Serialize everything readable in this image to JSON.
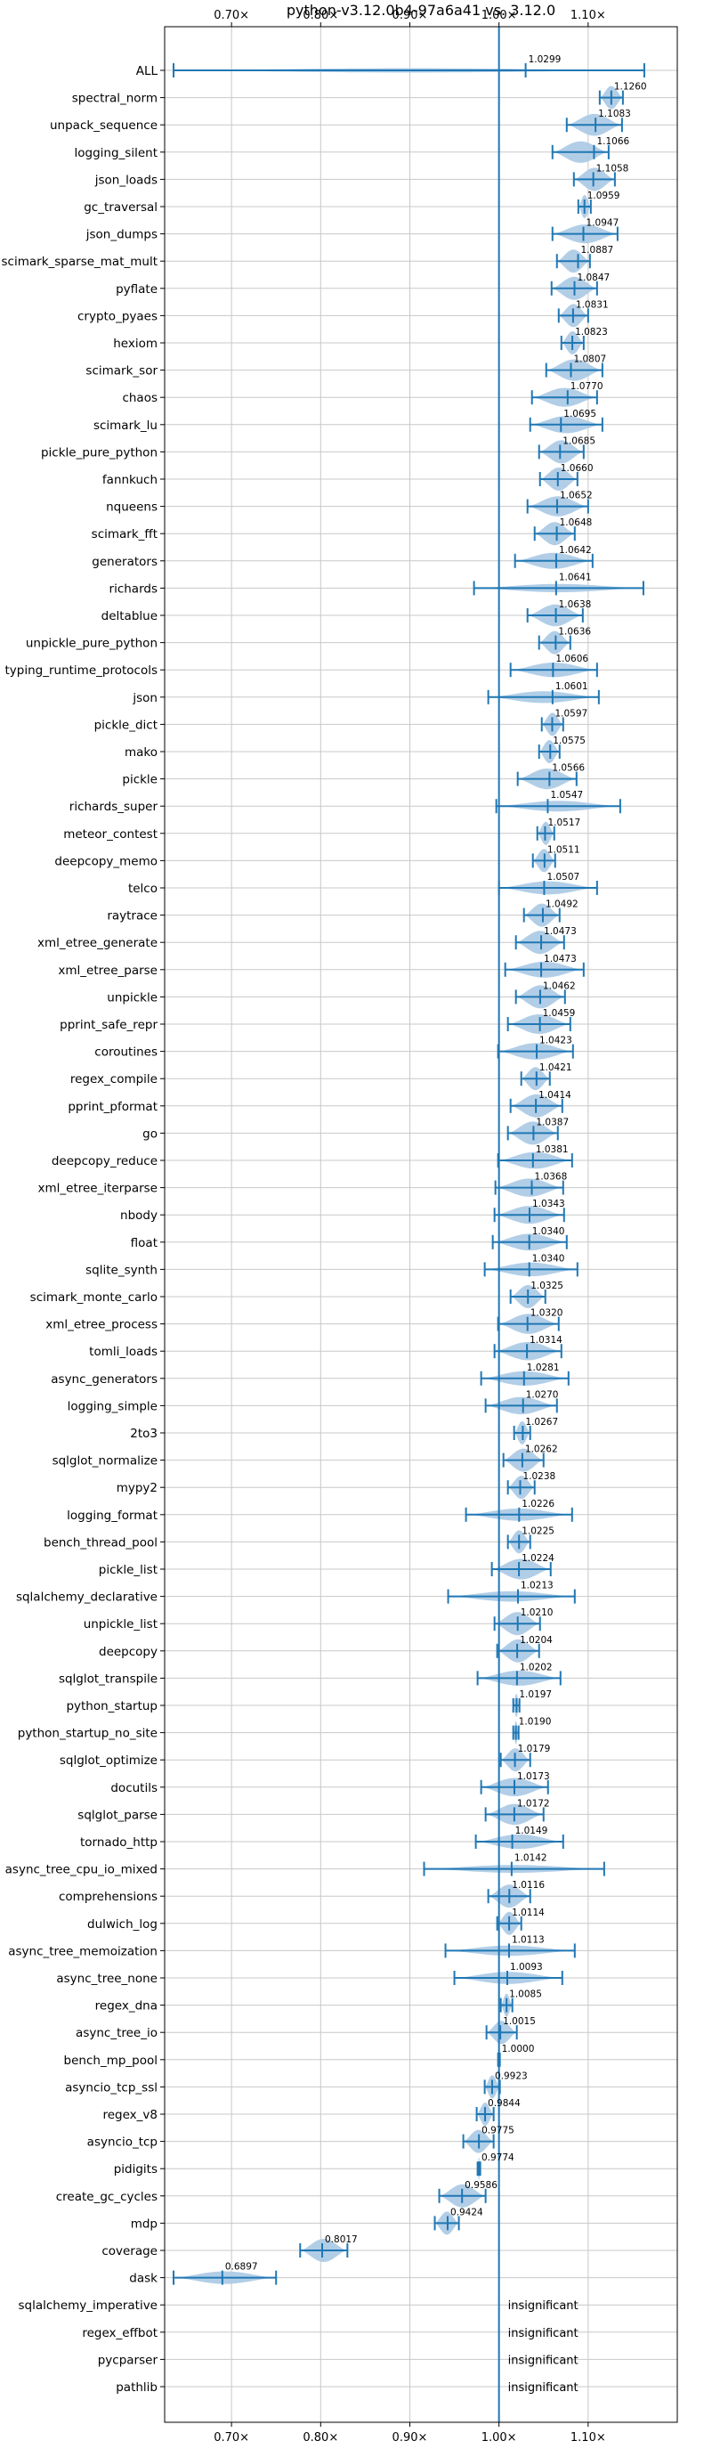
{
  "chart_data": {
    "type": "violin",
    "title": "python-v3.12.0b4-97a6a41 vs. 3.12.0",
    "xlabel": "",
    "ylabel": "",
    "xlim": [
      0.625,
      1.2
    ],
    "xticks": [
      {
        "value": 0.7,
        "label": "0.70×"
      },
      {
        "value": 0.8,
        "label": "0.80×"
      },
      {
        "value": 0.9,
        "label": "0.90×"
      },
      {
        "value": 1.0,
        "label": "1.00×"
      },
      {
        "value": 1.1,
        "label": "1.10×"
      }
    ],
    "reference_line": 1.0,
    "grid": true,
    "colors": {
      "violin": "#aecbe6",
      "line": "#1f77b4",
      "grid": "#c8c8c8"
    },
    "insignificant_label": "insignificant",
    "benchmarks": [
      {
        "name": "ALL",
        "value": 1.0299,
        "min": 0.635,
        "max": 1.163
      },
      {
        "name": "spectral_norm",
        "value": 1.126,
        "min": 1.113,
        "max": 1.139
      },
      {
        "name": "unpack_sequence",
        "value": 1.1083,
        "min": 1.076,
        "max": 1.138
      },
      {
        "name": "logging_silent",
        "value": 1.1066,
        "min": 1.06,
        "max": 1.123
      },
      {
        "name": "json_loads",
        "value": 1.1058,
        "min": 1.084,
        "max": 1.13
      },
      {
        "name": "gc_traversal",
        "value": 1.0959,
        "min": 1.089,
        "max": 1.103
      },
      {
        "name": "json_dumps",
        "value": 1.0947,
        "min": 1.06,
        "max": 1.133
      },
      {
        "name": "scimark_sparse_mat_mult",
        "value": 1.0887,
        "min": 1.065,
        "max": 1.102
      },
      {
        "name": "pyflate",
        "value": 1.0847,
        "min": 1.059,
        "max": 1.11
      },
      {
        "name": "crypto_pyaes",
        "value": 1.0831,
        "min": 1.067,
        "max": 1.1
      },
      {
        "name": "hexiom",
        "value": 1.0823,
        "min": 1.07,
        "max": 1.095
      },
      {
        "name": "scimark_sor",
        "value": 1.0807,
        "min": 1.053,
        "max": 1.116
      },
      {
        "name": "chaos",
        "value": 1.077,
        "min": 1.037,
        "max": 1.11
      },
      {
        "name": "scimark_lu",
        "value": 1.0695,
        "min": 1.035,
        "max": 1.116
      },
      {
        "name": "pickle_pure_python",
        "value": 1.0685,
        "min": 1.045,
        "max": 1.095
      },
      {
        "name": "fannkuch",
        "value": 1.066,
        "min": 1.046,
        "max": 1.088
      },
      {
        "name": "nqueens",
        "value": 1.0652,
        "min": 1.032,
        "max": 1.1
      },
      {
        "name": "scimark_fft",
        "value": 1.0648,
        "min": 1.04,
        "max": 1.085
      },
      {
        "name": "generators",
        "value": 1.0642,
        "min": 1.018,
        "max": 1.105
      },
      {
        "name": "richards",
        "value": 1.0641,
        "min": 0.972,
        "max": 1.162
      },
      {
        "name": "deltablue",
        "value": 1.0638,
        "min": 1.032,
        "max": 1.094
      },
      {
        "name": "unpickle_pure_python",
        "value": 1.0636,
        "min": 1.045,
        "max": 1.08
      },
      {
        "name": "typing_runtime_protocols",
        "value": 1.0606,
        "min": 1.013,
        "max": 1.11
      },
      {
        "name": "json",
        "value": 1.0601,
        "min": 0.988,
        "max": 1.112
      },
      {
        "name": "pickle_dict",
        "value": 1.0597,
        "min": 1.048,
        "max": 1.072
      },
      {
        "name": "mako",
        "value": 1.0575,
        "min": 1.045,
        "max": 1.068
      },
      {
        "name": "pickle",
        "value": 1.0566,
        "min": 1.021,
        "max": 1.087
      },
      {
        "name": "richards_super",
        "value": 1.0547,
        "min": 0.997,
        "max": 1.136
      },
      {
        "name": "meteor_contest",
        "value": 1.0517,
        "min": 1.043,
        "max": 1.062
      },
      {
        "name": "deepcopy_memo",
        "value": 1.0511,
        "min": 1.038,
        "max": 1.063
      },
      {
        "name": "telco",
        "value": 1.0507,
        "min": 1.0,
        "max": 1.11
      },
      {
        "name": "raytrace",
        "value": 1.0492,
        "min": 1.028,
        "max": 1.068
      },
      {
        "name": "xml_etree_generate",
        "value": 1.0473,
        "min": 1.019,
        "max": 1.073
      },
      {
        "name": "xml_etree_parse",
        "value": 1.0473,
        "min": 1.007,
        "max": 1.095
      },
      {
        "name": "unpickle",
        "value": 1.0462,
        "min": 1.019,
        "max": 1.074
      },
      {
        "name": "pprint_safe_repr",
        "value": 1.0459,
        "min": 1.01,
        "max": 1.08
      },
      {
        "name": "coroutines",
        "value": 1.0423,
        "min": 0.999,
        "max": 1.083
      },
      {
        "name": "regex_compile",
        "value": 1.0421,
        "min": 1.025,
        "max": 1.057
      },
      {
        "name": "pprint_pformat",
        "value": 1.0414,
        "min": 1.013,
        "max": 1.071
      },
      {
        "name": "go",
        "value": 1.0387,
        "min": 1.01,
        "max": 1.066
      },
      {
        "name": "deepcopy_reduce",
        "value": 1.0381,
        "min": 0.999,
        "max": 1.082
      },
      {
        "name": "xml_etree_iterparse",
        "value": 1.0368,
        "min": 0.996,
        "max": 1.072
      },
      {
        "name": "nbody",
        "value": 1.0343,
        "min": 0.995,
        "max": 1.073
      },
      {
        "name": "float",
        "value": 1.034,
        "min": 0.993,
        "max": 1.076
      },
      {
        "name": "sqlite_synth",
        "value": 1.034,
        "min": 0.984,
        "max": 1.088
      },
      {
        "name": "scimark_monte_carlo",
        "value": 1.0325,
        "min": 1.013,
        "max": 1.052
      },
      {
        "name": "xml_etree_process",
        "value": 1.032,
        "min": 0.999,
        "max": 1.067
      },
      {
        "name": "tomli_loads",
        "value": 1.0314,
        "min": 0.995,
        "max": 1.07
      },
      {
        "name": "async_generators",
        "value": 1.0281,
        "min": 0.98,
        "max": 1.078
      },
      {
        "name": "logging_simple",
        "value": 1.027,
        "min": 0.985,
        "max": 1.065
      },
      {
        "name": "2to3",
        "value": 1.0267,
        "min": 1.017,
        "max": 1.035
      },
      {
        "name": "sqlglot_normalize",
        "value": 1.0262,
        "min": 1.005,
        "max": 1.05
      },
      {
        "name": "mypy2",
        "value": 1.0238,
        "min": 1.01,
        "max": 1.04
      },
      {
        "name": "logging_format",
        "value": 1.0226,
        "min": 0.963,
        "max": 1.082
      },
      {
        "name": "bench_thread_pool",
        "value": 1.0225,
        "min": 1.01,
        "max": 1.035
      },
      {
        "name": "pickle_list",
        "value": 1.0224,
        "min": 0.992,
        "max": 1.058
      },
      {
        "name": "sqlalchemy_declarative",
        "value": 1.0213,
        "min": 0.943,
        "max": 1.085
      },
      {
        "name": "unpickle_list",
        "value": 1.021,
        "min": 0.995,
        "max": 1.046
      },
      {
        "name": "deepcopy",
        "value": 1.0204,
        "min": 0.998,
        "max": 1.045
      },
      {
        "name": "sqlglot_transpile",
        "value": 1.0202,
        "min": 0.976,
        "max": 1.069
      },
      {
        "name": "python_startup",
        "value": 1.0197,
        "min": 1.016,
        "max": 1.023
      },
      {
        "name": "python_startup_no_site",
        "value": 1.019,
        "min": 1.016,
        "max": 1.022
      },
      {
        "name": "sqlglot_optimize",
        "value": 1.0179,
        "min": 1.002,
        "max": 1.035
      },
      {
        "name": "docutils",
        "value": 1.0173,
        "min": 0.98,
        "max": 1.055
      },
      {
        "name": "sqlglot_parse",
        "value": 1.0172,
        "min": 0.985,
        "max": 1.05
      },
      {
        "name": "tornado_http",
        "value": 1.0149,
        "min": 0.974,
        "max": 1.072
      },
      {
        "name": "async_tree_cpu_io_mixed",
        "value": 1.0142,
        "min": 0.916,
        "max": 1.118
      },
      {
        "name": "comprehensions",
        "value": 1.0116,
        "min": 0.988,
        "max": 1.035
      },
      {
        "name": "dulwich_log",
        "value": 1.0114,
        "min": 0.998,
        "max": 1.025
      },
      {
        "name": "async_tree_memoization",
        "value": 1.0113,
        "min": 0.94,
        "max": 1.085
      },
      {
        "name": "async_tree_none",
        "value": 1.0093,
        "min": 0.95,
        "max": 1.071
      },
      {
        "name": "regex_dna",
        "value": 1.0085,
        "min": 1.002,
        "max": 1.015
      },
      {
        "name": "async_tree_io",
        "value": 1.0015,
        "min": 0.986,
        "max": 1.02
      },
      {
        "name": "bench_mp_pool",
        "value": 1.0,
        "min": 0.999,
        "max": 1.001
      },
      {
        "name": "asyncio_tcp_ssl",
        "value": 0.9923,
        "min": 0.984,
        "max": 1.001
      },
      {
        "name": "regex_v8",
        "value": 0.9844,
        "min": 0.975,
        "max": 0.994
      },
      {
        "name": "asyncio_tcp",
        "value": 0.9775,
        "min": 0.96,
        "max": 0.994
      },
      {
        "name": "pidigits",
        "value": 0.9774,
        "min": 0.976,
        "max": 0.979
      },
      {
        "name": "create_gc_cycles",
        "value": 0.9586,
        "min": 0.933,
        "max": 0.985
      },
      {
        "name": "mdp",
        "value": 0.9424,
        "min": 0.928,
        "max": 0.955
      },
      {
        "name": "coverage",
        "value": 0.8017,
        "min": 0.777,
        "max": 0.83
      },
      {
        "name": "dask",
        "value": 0.6897,
        "min": 0.635,
        "max": 0.75
      },
      {
        "name": "sqlalchemy_imperative",
        "value": null,
        "min": null,
        "max": null
      },
      {
        "name": "regex_effbot",
        "value": null,
        "min": null,
        "max": null
      },
      {
        "name": "pycparser",
        "value": null,
        "min": null,
        "max": null
      },
      {
        "name": "pathlib",
        "value": null,
        "min": null,
        "max": null
      }
    ]
  }
}
